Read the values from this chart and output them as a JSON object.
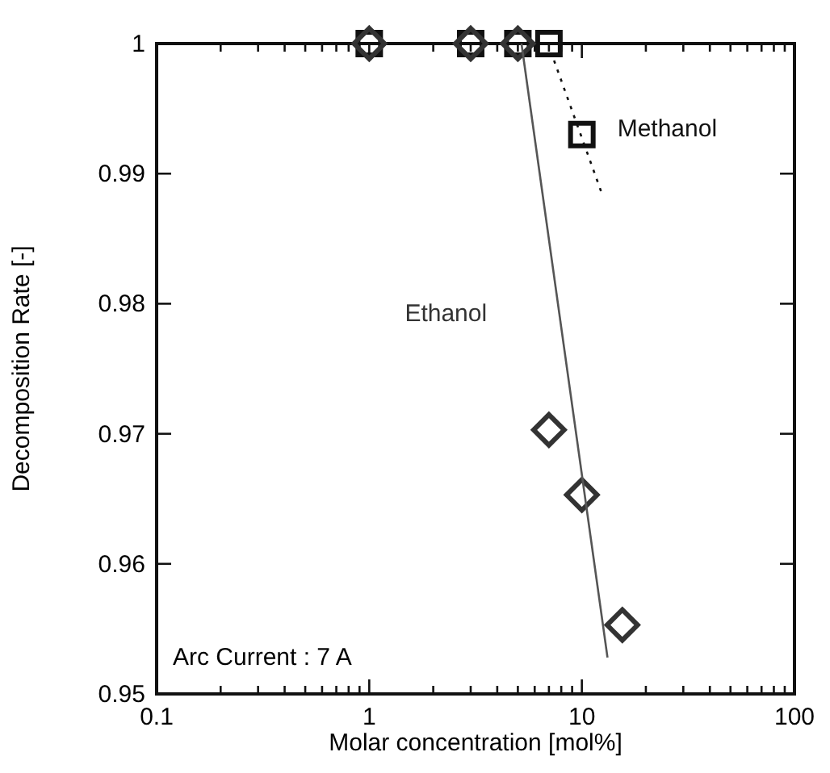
{
  "chart_data": {
    "type": "scatter",
    "xlabel": "Molar concentration [mol%]",
    "ylabel": "Decomposition Rate [-]",
    "log": "x",
    "xlim": [
      0.1,
      100
    ],
    "ylim": [
      0.95,
      1
    ],
    "xticks": [
      0.1,
      {
        "value": 0.2,
        "label": null
      },
      {
        "value": 0.3,
        "label": null
      },
      {
        "value": 0.4,
        "label": null
      },
      {
        "value": 0.5,
        "label": null
      },
      {
        "value": 0.6,
        "label": null
      },
      {
        "value": 0.7,
        "label": null
      },
      {
        "value": 0.8,
        "label": null
      },
      {
        "value": 0.9,
        "label": null
      },
      1,
      {
        "value": 2,
        "label": null
      },
      {
        "value": 3,
        "label": null
      },
      {
        "value": 4,
        "label": null
      },
      {
        "value": 5,
        "label": null
      },
      {
        "value": 6,
        "label": null
      },
      {
        "value": 7,
        "label": null
      },
      {
        "value": 8,
        "label": null
      },
      {
        "value": 9,
        "label": null
      },
      10,
      {
        "value": 20,
        "label": null
      },
      {
        "value": 30,
        "label": null
      },
      {
        "value": 40,
        "label": null
      },
      {
        "value": 50,
        "label": null
      },
      {
        "value": 60,
        "label": null
      },
      {
        "value": 70,
        "label": null
      },
      {
        "value": 80,
        "label": null
      },
      {
        "value": 90,
        "label": null
      },
      100
    ],
    "yticks": [
      0.95,
      0.96,
      0.97,
      0.98,
      0.99,
      1
    ],
    "grid": false,
    "legend": false,
    "series": [
      {
        "name": "Methanol",
        "type": "scatter",
        "marker": "square",
        "color": "#111111",
        "x": [
          1,
          3,
          5,
          7,
          10
        ],
        "values": [
          1,
          1,
          1,
          1,
          0.993
        ]
      },
      {
        "type": "line",
        "line_style": "dotted",
        "color": "#111111",
        "x": [
          7.4,
          12.4
        ],
        "values": [
          0.9987,
          0.9885
        ]
      },
      {
        "name": "Ethanol",
        "type": "scatter",
        "marker": "diamond",
        "color": "#333333",
        "x": [
          1,
          3,
          5,
          7,
          10,
          15.5
        ],
        "values": [
          1,
          1,
          1,
          0.9703,
          0.9653,
          0.9553
        ]
      },
      {
        "type": "line",
        "line_style": "solid",
        "color": "#555555",
        "x": [
          5.2,
          13.2
        ],
        "values": [
          1,
          0.9528
        ]
      }
    ],
    "annotations": [
      "Arc Current : 7 A"
    ]
  }
}
